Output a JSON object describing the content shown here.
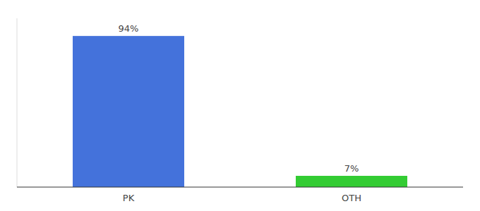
{
  "chart_data": {
    "type": "bar",
    "categories": [
      "PK",
      "OTH"
    ],
    "values": [
      94,
      7
    ],
    "value_labels": [
      "94%",
      "7%"
    ],
    "colors": [
      "#4472db",
      "#33cc33"
    ],
    "ylim": [
      0,
      105
    ],
    "data_labels": true,
    "tick_labels": "x",
    "grid": false
  }
}
